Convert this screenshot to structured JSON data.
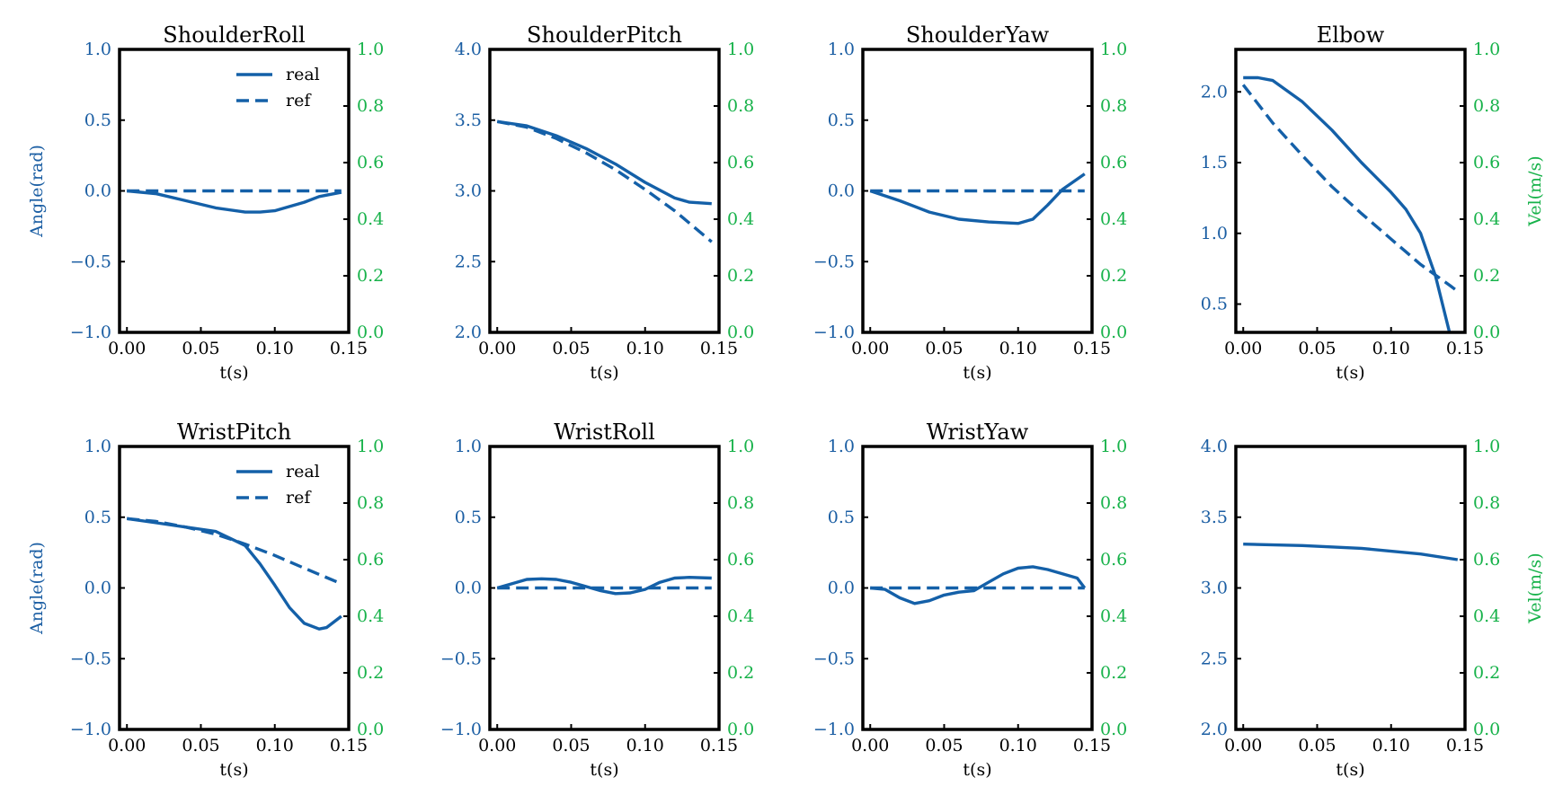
{
  "colors": {
    "left_axis": "#1b5ea3",
    "right_axis": "#17b24a",
    "line": "#1460a8",
    "frame": "#000000"
  },
  "chart_data": [
    {
      "type": "line",
      "title": "ShoulderRoll",
      "xlabel": "t(s)",
      "ylabel": "Angle(rad)",
      "y2label": "",
      "xlim": [
        -0.005,
        0.15
      ],
      "xticks": [
        "0.00",
        "0.05",
        "0.10",
        "0.15"
      ],
      "ylim": [
        -1.0,
        1.0
      ],
      "yticks": [
        "−1.0",
        "−0.5",
        "0.0",
        "0.5",
        "1.0"
      ],
      "y2lim": [
        0.0,
        1.0
      ],
      "y2ticks": [
        "0.0",
        "0.2",
        "0.4",
        "0.6",
        "0.8",
        "1.0"
      ],
      "legend": {
        "position": "top-right",
        "entries": [
          "real",
          "ref"
        ]
      },
      "series": [
        {
          "name": "real",
          "style": "solid",
          "x": [
            0.0,
            0.02,
            0.04,
            0.06,
            0.08,
            0.09,
            0.1,
            0.12,
            0.13,
            0.145
          ],
          "y": [
            0.0,
            -0.02,
            -0.07,
            -0.12,
            -0.15,
            -0.15,
            -0.14,
            -0.08,
            -0.04,
            -0.01
          ]
        },
        {
          "name": "ref",
          "style": "dashed",
          "x": [
            0.0,
            0.145
          ],
          "y": [
            0.0,
            0.0
          ]
        }
      ]
    },
    {
      "type": "line",
      "title": "ShoulderPitch",
      "xlabel": "t(s)",
      "ylabel": "",
      "y2label": "",
      "xlim": [
        -0.005,
        0.15
      ],
      "xticks": [
        "0.00",
        "0.05",
        "0.10",
        "0.15"
      ],
      "ylim": [
        2.0,
        4.0
      ],
      "yticks": [
        "2.0",
        "2.5",
        "3.0",
        "3.5",
        "4.0"
      ],
      "y2lim": [
        0.0,
        1.0
      ],
      "y2ticks": [
        "0.0",
        "0.2",
        "0.4",
        "0.6",
        "0.8",
        "1.0"
      ],
      "legend": null,
      "series": [
        {
          "name": "",
          "style": "solid",
          "x": [
            0.0,
            0.02,
            0.04,
            0.06,
            0.08,
            0.1,
            0.12,
            0.13,
            0.145
          ],
          "y": [
            3.49,
            3.46,
            3.39,
            3.3,
            3.19,
            3.06,
            2.95,
            2.92,
            2.91
          ]
        },
        {
          "name": "",
          "style": "dashed",
          "x": [
            0.0,
            0.02,
            0.04,
            0.06,
            0.08,
            0.1,
            0.12,
            0.145
          ],
          "y": [
            3.49,
            3.45,
            3.37,
            3.27,
            3.15,
            3.01,
            2.86,
            2.64
          ]
        }
      ]
    },
    {
      "type": "line",
      "title": "ShoulderYaw",
      "xlabel": "t(s)",
      "ylabel": "",
      "y2label": "",
      "xlim": [
        -0.005,
        0.15
      ],
      "xticks": [
        "0.00",
        "0.05",
        "0.10",
        "0.15"
      ],
      "ylim": [
        -1.0,
        1.0
      ],
      "yticks": [
        "−1.0",
        "−0.5",
        "0.0",
        "0.5",
        "1.0"
      ],
      "y2lim": [
        0.0,
        1.0
      ],
      "y2ticks": [
        "0.0",
        "0.2",
        "0.4",
        "0.6",
        "0.8",
        "1.0"
      ],
      "legend": null,
      "series": [
        {
          "name": "",
          "style": "solid",
          "x": [
            0.0,
            0.02,
            0.04,
            0.06,
            0.08,
            0.1,
            0.11,
            0.12,
            0.13,
            0.145
          ],
          "y": [
            0.0,
            -0.07,
            -0.15,
            -0.2,
            -0.22,
            -0.23,
            -0.2,
            -0.1,
            0.01,
            0.12
          ]
        },
        {
          "name": "",
          "style": "dashed",
          "x": [
            0.0,
            0.145
          ],
          "y": [
            0.0,
            0.0
          ]
        }
      ]
    },
    {
      "type": "line",
      "title": "Elbow",
      "xlabel": "t(s)",
      "ylabel": "",
      "y2label": "Vel(m/s)",
      "xlim": [
        -0.005,
        0.15
      ],
      "xticks": [
        "0.00",
        "0.05",
        "0.10",
        "0.15"
      ],
      "ylim": [
        0.3,
        2.3
      ],
      "yticks": [
        "0.5",
        "1.0",
        "1.5",
        "2.0"
      ],
      "ytick_values": [
        0.5,
        1.0,
        1.5,
        2.0
      ],
      "y2lim": [
        0.0,
        1.0
      ],
      "y2ticks": [
        "0.0",
        "0.2",
        "0.4",
        "0.6",
        "0.8",
        "1.0"
      ],
      "legend": null,
      "series": [
        {
          "name": "",
          "style": "solid",
          "x": [
            0.0,
            0.01,
            0.02,
            0.04,
            0.06,
            0.08,
            0.1,
            0.11,
            0.12,
            0.13,
            0.14
          ],
          "y": [
            2.1,
            2.1,
            2.08,
            1.93,
            1.73,
            1.5,
            1.29,
            1.17,
            1.0,
            0.7,
            0.28
          ]
        },
        {
          "name": "",
          "style": "dashed",
          "x": [
            0.0,
            0.02,
            0.04,
            0.06,
            0.08,
            0.1,
            0.12,
            0.14,
            0.145
          ],
          "y": [
            2.05,
            1.78,
            1.55,
            1.33,
            1.14,
            0.96,
            0.78,
            0.63,
            0.59
          ]
        }
      ]
    },
    {
      "type": "line",
      "title": "WristPitch",
      "xlabel": "t(s)",
      "ylabel": "Angle(rad)",
      "y2label": "",
      "xlim": [
        -0.005,
        0.15
      ],
      "xticks": [
        "0.00",
        "0.05",
        "0.10",
        "0.15"
      ],
      "ylim": [
        -1.0,
        1.0
      ],
      "yticks": [
        "−1.0",
        "−0.5",
        "0.0",
        "0.5",
        "1.0"
      ],
      "y2lim": [
        0.0,
        1.0
      ],
      "y2ticks": [
        "0.0",
        "0.2",
        "0.4",
        "0.6",
        "0.8",
        "1.0"
      ],
      "legend": {
        "position": "top-right",
        "entries": [
          "real",
          "ref"
        ]
      },
      "series": [
        {
          "name": "real",
          "style": "solid",
          "x": [
            0.0,
            0.02,
            0.04,
            0.06,
            0.08,
            0.09,
            0.1,
            0.11,
            0.12,
            0.13,
            0.135,
            0.145
          ],
          "y": [
            0.49,
            0.46,
            0.43,
            0.4,
            0.3,
            0.17,
            0.02,
            -0.14,
            -0.25,
            -0.29,
            -0.28,
            -0.2
          ]
        },
        {
          "name": "ref",
          "style": "dashed",
          "x": [
            0.0,
            0.02,
            0.04,
            0.06,
            0.08,
            0.1,
            0.12,
            0.145
          ],
          "y": [
            0.49,
            0.47,
            0.43,
            0.38,
            0.31,
            0.23,
            0.14,
            0.03
          ]
        }
      ]
    },
    {
      "type": "line",
      "title": "WristRoll",
      "xlabel": "t(s)",
      "ylabel": "",
      "y2label": "",
      "xlim": [
        -0.005,
        0.15
      ],
      "xticks": [
        "0.00",
        "0.05",
        "0.10",
        "0.15"
      ],
      "ylim": [
        -1.0,
        1.0
      ],
      "yticks": [
        "−1.0",
        "−0.5",
        "0.0",
        "0.5",
        "1.0"
      ],
      "y2lim": [
        0.0,
        1.0
      ],
      "y2ticks": [
        "0.0",
        "0.2",
        "0.4",
        "0.6",
        "0.8",
        "1.0"
      ],
      "legend": null,
      "series": [
        {
          "name": "",
          "style": "solid",
          "x": [
            0.0,
            0.01,
            0.02,
            0.03,
            0.04,
            0.05,
            0.06,
            0.07,
            0.08,
            0.09,
            0.1,
            0.11,
            0.12,
            0.13,
            0.145
          ],
          "y": [
            0.0,
            0.03,
            0.06,
            0.065,
            0.06,
            0.04,
            0.01,
            -0.02,
            -0.04,
            -0.035,
            -0.01,
            0.04,
            0.07,
            0.075,
            0.07
          ]
        },
        {
          "name": "",
          "style": "dashed",
          "x": [
            0.0,
            0.145
          ],
          "y": [
            0.0,
            0.0
          ]
        }
      ]
    },
    {
      "type": "line",
      "title": "WristYaw",
      "xlabel": "t(s)",
      "ylabel": "",
      "y2label": "",
      "xlim": [
        -0.005,
        0.15
      ],
      "xticks": [
        "0.00",
        "0.05",
        "0.10",
        "0.15"
      ],
      "ylim": [
        -1.0,
        1.0
      ],
      "yticks": [
        "−1.0",
        "−0.5",
        "0.0",
        "0.5",
        "1.0"
      ],
      "y2lim": [
        0.0,
        1.0
      ],
      "y2ticks": [
        "0.0",
        "0.2",
        "0.4",
        "0.6",
        "0.8",
        "1.0"
      ],
      "legend": null,
      "series": [
        {
          "name": "",
          "style": "solid",
          "x": [
            0.0,
            0.01,
            0.02,
            0.03,
            0.04,
            0.05,
            0.06,
            0.07,
            0.08,
            0.09,
            0.1,
            0.11,
            0.12,
            0.13,
            0.14,
            0.145
          ],
          "y": [
            0.0,
            -0.01,
            -0.07,
            -0.11,
            -0.09,
            -0.05,
            -0.03,
            -0.02,
            0.04,
            0.1,
            0.14,
            0.15,
            0.13,
            0.1,
            0.07,
            0.0
          ]
        },
        {
          "name": "",
          "style": "dashed",
          "x": [
            0.0,
            0.145
          ],
          "y": [
            0.0,
            0.0
          ]
        }
      ]
    },
    {
      "type": "line",
      "title": "",
      "xlabel": "t(s)",
      "ylabel": "",
      "y2label": "Vel(m/s)",
      "xlim": [
        -0.005,
        0.15
      ],
      "xticks": [
        "0.00",
        "0.05",
        "0.10",
        "0.15"
      ],
      "ylim": [
        2.0,
        4.0
      ],
      "yticks": [
        "2.0",
        "2.5",
        "3.0",
        "3.5",
        "4.0"
      ],
      "y2lim": [
        0.0,
        1.0
      ],
      "y2ticks": [
        "0.0",
        "0.2",
        "0.4",
        "0.6",
        "0.8",
        "1.0"
      ],
      "legend": null,
      "series": [
        {
          "name": "",
          "style": "solid",
          "x": [
            0.0,
            0.04,
            0.08,
            0.12,
            0.145
          ],
          "y": [
            3.31,
            3.3,
            3.28,
            3.24,
            3.2
          ]
        }
      ]
    }
  ]
}
